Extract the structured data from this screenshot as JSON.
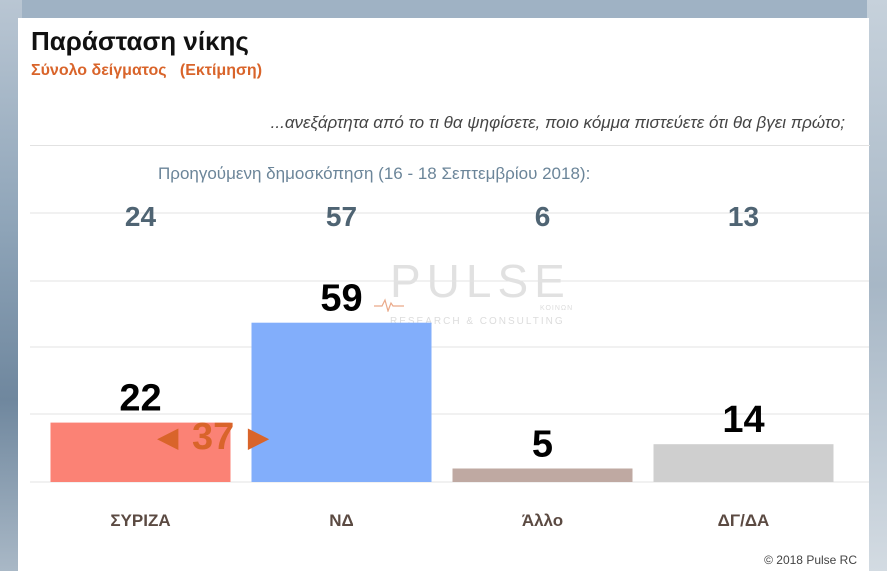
{
  "header": {
    "title": "Παράσταση νίκης",
    "subtitle": "Σύνολο δείγματος   (Εκτίμηση)",
    "question": "...ανεξάρτητα από το τι θα ψηφίσετε, ποιο κόμμα πιστεύετε ότι θα βγει πρώτο;"
  },
  "previous_poll": {
    "label": "Προηγούμενη δημοσκόπηση (16 - 18 Σεπτεμβρίου 2018):"
  },
  "difference": {
    "value": "37",
    "color": "#d9642a",
    "left_icon": "left-triangle-icon",
    "right_icon": "right-triangle-icon"
  },
  "watermark": {
    "main": "PULSE",
    "sub": "RESEARCH & CONSULTING",
    "small": "ΚΟΙΝΩΝ",
    "icon": "pulse-line-icon"
  },
  "footer": {
    "copyright": "© 2018 Pulse RC"
  },
  "chart_data": {
    "type": "bar",
    "categories": [
      "ΣΥΡΙΖΑ",
      "ΝΔ",
      "Άλλο",
      "ΔΓ/ΔΑ"
    ],
    "values": [
      22,
      59,
      5,
      14
    ],
    "previous_values": [
      24,
      57,
      6,
      13
    ],
    "colors": [
      "#fb8275",
      "#82aefb",
      "#bfa9a2",
      "#cfcfcf"
    ],
    "title": "Παράσταση νίκης",
    "xlabel": "",
    "ylabel": "",
    "ylim": [
      0,
      100
    ],
    "grid": true,
    "legend": "none"
  }
}
